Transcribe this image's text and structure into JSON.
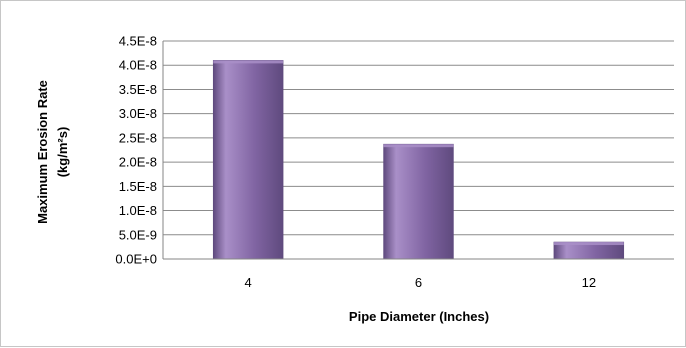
{
  "chart_data": {
    "type": "bar",
    "title": "",
    "categories": [
      "4",
      "6",
      "12"
    ],
    "values": [
      4.1e-08,
      2.37e-08,
      3.5e-09
    ],
    "xlabel": "Pipe Diameter (Inches)",
    "ylabel_line1": "Maximum Erosion Rate",
    "ylabel_line2": "(kg/m²s)",
    "ylim": [
      0,
      4.5e-08
    ],
    "yticks": [
      0,
      5e-09,
      1e-08,
      1.5e-08,
      2e-08,
      2.5e-08,
      3e-08,
      3.5e-08,
      4e-08,
      4.5e-08
    ],
    "ytick_labels": [
      "0.0E+0",
      "5.0E-9",
      "1.0E-8",
      "1.5E-8",
      "2.0E-8",
      "2.5E-8",
      "3.0E-8",
      "3.5E-8",
      "4.0E-8",
      "4.5E-8"
    ],
    "grid": true,
    "legend": "none",
    "colors": {
      "bar_main": "#8064a2",
      "bar_light": "#a98fc8",
      "bar_dark": "#5f4a7e",
      "grid": "#8c8c8c",
      "axis": "#868686"
    }
  }
}
